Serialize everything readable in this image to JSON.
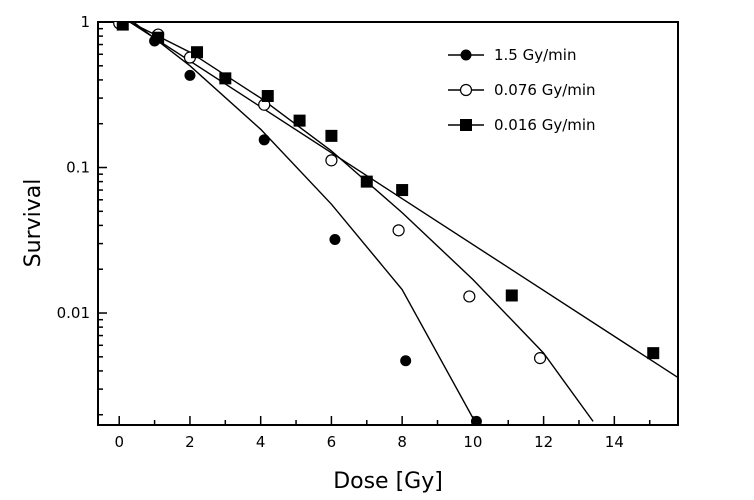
{
  "chart_data": {
    "type": "scatter",
    "title": "",
    "xlabel": "Dose [Gy]",
    "ylabel": "Survival",
    "xlim": [
      -0.6,
      15.8
    ],
    "ylim": [
      0.0017,
      1.0
    ],
    "y_scale": "log",
    "x_ticks": [
      0,
      2,
      4,
      6,
      8,
      10,
      12,
      14
    ],
    "y_ticks": [
      {
        "value": 1,
        "label": "1"
      },
      {
        "value": 0.1,
        "label": "0.1"
      },
      {
        "value": 0.01,
        "label": "0.01"
      }
    ],
    "grid": false,
    "legend_position": "top-right",
    "series": [
      {
        "name": "1.5 Gy/min",
        "marker": "filled-circle",
        "points": [
          [
            0,
            0.98
          ],
          [
            1,
            0.74
          ],
          [
            2,
            0.43
          ],
          [
            4.1,
            0.155
          ],
          [
            6.1,
            0.032
          ],
          [
            8.1,
            0.0047
          ],
          [
            10.1,
            0.0018
          ]
        ],
        "fit_line": [
          [
            0.4,
            1.0
          ],
          [
            2,
            0.5
          ],
          [
            4,
            0.183
          ],
          [
            6,
            0.056
          ],
          [
            8,
            0.0145
          ],
          [
            10,
            0.0019
          ]
        ]
      },
      {
        "name": "0.076 Gy/min",
        "marker": "open-circle",
        "points": [
          [
            0,
            0.98
          ],
          [
            1.1,
            0.82
          ],
          [
            2,
            0.57
          ],
          [
            4.1,
            0.27
          ],
          [
            6,
            0.112
          ],
          [
            7.9,
            0.037
          ],
          [
            9.9,
            0.013
          ],
          [
            11.9,
            0.0049
          ]
        ],
        "fit_line": [
          [
            0.3,
            1.0
          ],
          [
            2,
            0.62
          ],
          [
            4,
            0.3
          ],
          [
            6,
            0.13
          ],
          [
            8,
            0.049
          ],
          [
            10,
            0.017
          ],
          [
            12,
            0.0053
          ],
          [
            13.4,
            0.0018
          ]
        ]
      },
      {
        "name": "0.016 Gy/min",
        "marker": "filled-square",
        "points": [
          [
            0.1,
            0.96
          ],
          [
            1.1,
            0.78
          ],
          [
            2.2,
            0.62
          ],
          [
            3,
            0.41
          ],
          [
            4.2,
            0.31
          ],
          [
            5.1,
            0.21
          ],
          [
            6,
            0.165
          ],
          [
            7,
            0.08
          ],
          [
            8,
            0.07
          ],
          [
            11.1,
            0.0132
          ],
          [
            15.1,
            0.0053
          ]
        ],
        "fit_line": [
          [
            0.3,
            1.0
          ],
          [
            15.8,
            0.0036
          ]
        ]
      }
    ]
  }
}
